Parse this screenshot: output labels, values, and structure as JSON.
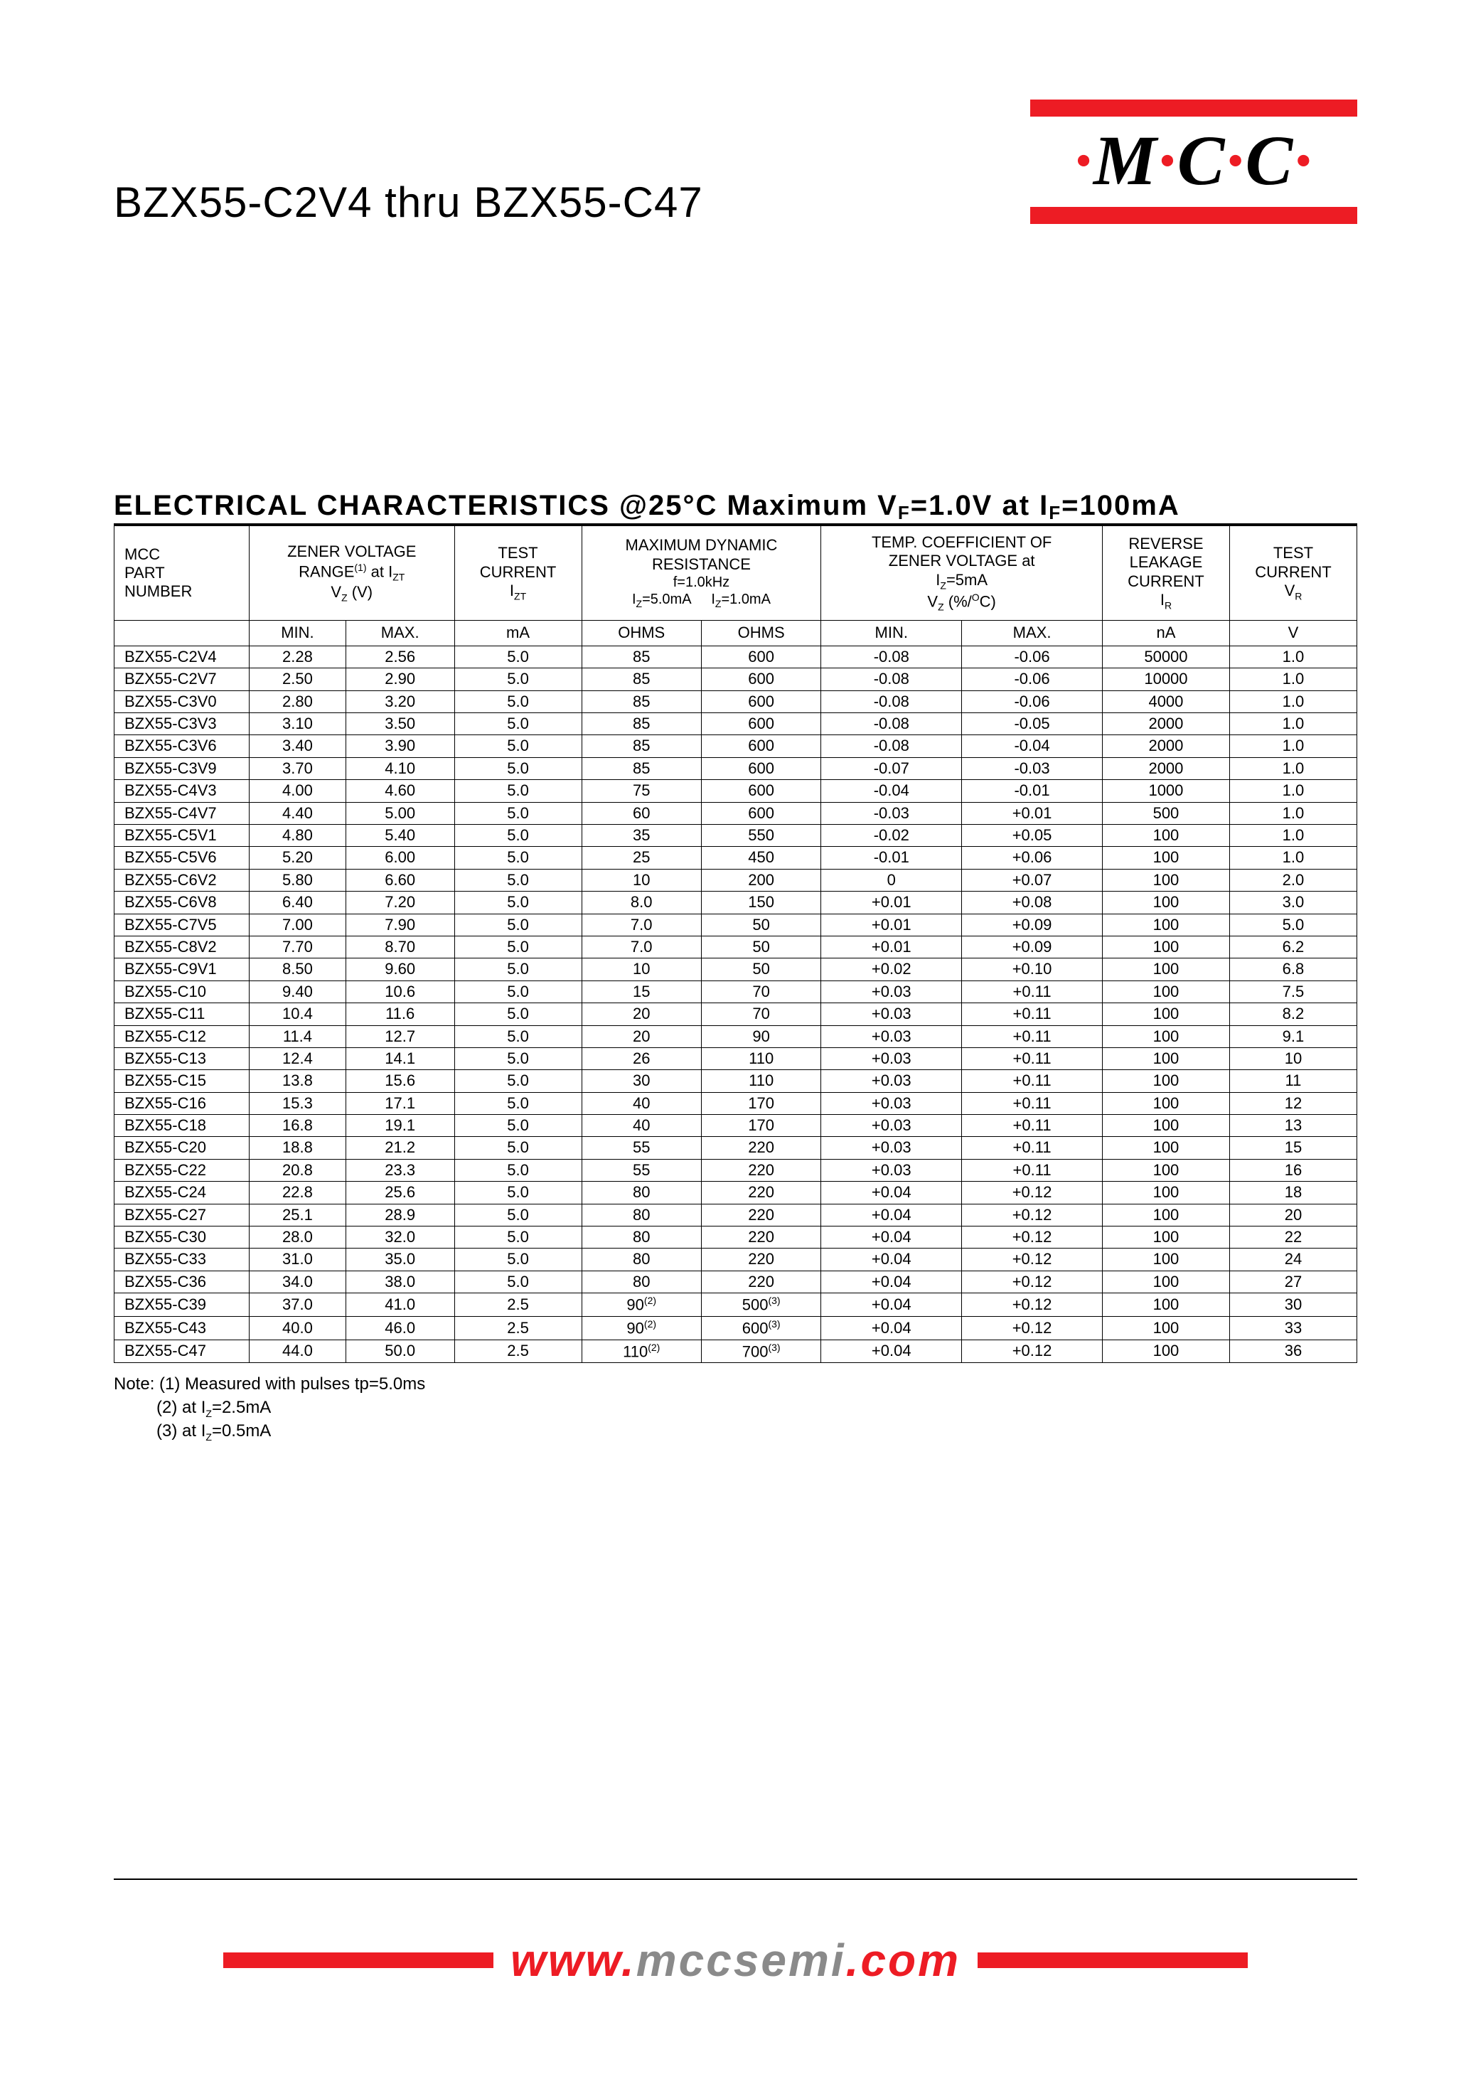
{
  "colors": {
    "accent": "#ed1c24",
    "gray": "#8a8a8a",
    "rule": "#000000",
    "bg": "#ffffff"
  },
  "logo": {
    "text_parts": [
      "·",
      "M",
      "·",
      "C",
      "·",
      "C",
      "·"
    ]
  },
  "product_title": "BZX55-C2V4 thru BZX55-C47",
  "section_title_html": "ELECTRICAL CHARACTERISTICS @25°C Maximum V<sub>F</sub>=1.0V at I<sub>F</sub>=100mA",
  "table": {
    "header_groups": [
      {
        "html": "MCC<br>PART<br>NUMBER",
        "colspan": 1
      },
      {
        "html": "ZENER VOLTAGE<br>RANGE<span class='sup'>(1)</span> at I<span class='sub'>ZT</span><br>V<span class='sub'>Z</span> (V)",
        "colspan": 2
      },
      {
        "html": "TEST<br>CURRENT<br>I<span class='sub'>ZT</span>",
        "colspan": 1
      },
      {
        "html": "MAXIMUM DYNAMIC<br>RESISTANCE<br><span class='subline'>f=1.0kHz</span><span class='subline'>I<span class='sub'>Z</span>=5.0mA&nbsp;&nbsp;&nbsp;&nbsp;&nbsp;I<span class='sub'>Z</span>=1.0mA</span>",
        "colspan": 2
      },
      {
        "html": "TEMP. COEFFICIENT OF<br>ZENER VOLTAGE at<br>I<span class='sub'>Z</span>=5mA<br>V<span class='sub'>Z</span> (%/<span class='sup'>O</span>C)",
        "colspan": 2
      },
      {
        "html": "REVERSE<br>LEAKAGE<br>CURRENT<br>I<span class='sub'>R</span>",
        "colspan": 1
      },
      {
        "html": "TEST<br>CURRENT<br>V<span class='sub'>R</span>",
        "colspan": 1
      }
    ],
    "unit_row": [
      "",
      "MIN.",
      "MAX.",
      "mA",
      "OHMS",
      "OHMS",
      "MIN.",
      "MAX.",
      "nA",
      "V"
    ],
    "rows": [
      [
        "BZX55-C2V4",
        "2.28",
        "2.56",
        "5.0",
        "85",
        "600",
        "-0.08",
        "-0.06",
        "50000",
        "1.0"
      ],
      [
        "BZX55-C2V7",
        "2.50",
        "2.90",
        "5.0",
        "85",
        "600",
        "-0.08",
        "-0.06",
        "10000",
        "1.0"
      ],
      [
        "BZX55-C3V0",
        "2.80",
        "3.20",
        "5.0",
        "85",
        "600",
        "-0.08",
        "-0.06",
        "4000",
        "1.0"
      ],
      [
        "BZX55-C3V3",
        "3.10",
        "3.50",
        "5.0",
        "85",
        "600",
        "-0.08",
        "-0.05",
        "2000",
        "1.0"
      ],
      [
        "BZX55-C3V6",
        "3.40",
        "3.90",
        "5.0",
        "85",
        "600",
        "-0.08",
        "-0.04",
        "2000",
        "1.0"
      ],
      [
        "BZX55-C3V9",
        "3.70",
        "4.10",
        "5.0",
        "85",
        "600",
        "-0.07",
        "-0.03",
        "2000",
        "1.0"
      ],
      [
        "BZX55-C4V3",
        "4.00",
        "4.60",
        "5.0",
        "75",
        "600",
        "-0.04",
        "-0.01",
        "1000",
        "1.0"
      ],
      [
        "BZX55-C4V7",
        "4.40",
        "5.00",
        "5.0",
        "60",
        "600",
        "-0.03",
        "+0.01",
        "500",
        "1.0"
      ],
      [
        "BZX55-C5V1",
        "4.80",
        "5.40",
        "5.0",
        "35",
        "550",
        "-0.02",
        "+0.05",
        "100",
        "1.0"
      ],
      [
        "BZX55-C5V6",
        "5.20",
        "6.00",
        "5.0",
        "25",
        "450",
        "-0.01",
        "+0.06",
        "100",
        "1.0"
      ],
      [
        "BZX55-C6V2",
        "5.80",
        "6.60",
        "5.0",
        "10",
        "200",
        "0",
        "+0.07",
        "100",
        "2.0"
      ],
      [
        "BZX55-C6V8",
        "6.40",
        "7.20",
        "5.0",
        "8.0",
        "150",
        "+0.01",
        "+0.08",
        "100",
        "3.0"
      ],
      [
        "BZX55-C7V5",
        "7.00",
        "7.90",
        "5.0",
        "7.0",
        "50",
        "+0.01",
        "+0.09",
        "100",
        "5.0"
      ],
      [
        "BZX55-C8V2",
        "7.70",
        "8.70",
        "5.0",
        "7.0",
        "50",
        "+0.01",
        "+0.09",
        "100",
        "6.2"
      ],
      [
        "BZX55-C9V1",
        "8.50",
        "9.60",
        "5.0",
        "10",
        "50",
        "+0.02",
        "+0.10",
        "100",
        "6.8"
      ],
      [
        "BZX55-C10",
        "9.40",
        "10.6",
        "5.0",
        "15",
        "70",
        "+0.03",
        "+0.11",
        "100",
        "7.5"
      ],
      [
        "BZX55-C11",
        "10.4",
        "11.6",
        "5.0",
        "20",
        "70",
        "+0.03",
        "+0.11",
        "100",
        "8.2"
      ],
      [
        "BZX55-C12",
        "11.4",
        "12.7",
        "5.0",
        "20",
        "90",
        "+0.03",
        "+0.11",
        "100",
        "9.1"
      ],
      [
        "BZX55-C13",
        "12.4",
        "14.1",
        "5.0",
        "26",
        "110",
        "+0.03",
        "+0.11",
        "100",
        "10"
      ],
      [
        "BZX55-C15",
        "13.8",
        "15.6",
        "5.0",
        "30",
        "110",
        "+0.03",
        "+0.11",
        "100",
        "11"
      ],
      [
        "BZX55-C16",
        "15.3",
        "17.1",
        "5.0",
        "40",
        "170",
        "+0.03",
        "+0.11",
        "100",
        "12"
      ],
      [
        "BZX55-C18",
        "16.8",
        "19.1",
        "5.0",
        "40",
        "170",
        "+0.03",
        "+0.11",
        "100",
        "13"
      ],
      [
        "BZX55-C20",
        "18.8",
        "21.2",
        "5.0",
        "55",
        "220",
        "+0.03",
        "+0.11",
        "100",
        "15"
      ],
      [
        "BZX55-C22",
        "20.8",
        "23.3",
        "5.0",
        "55",
        "220",
        "+0.03",
        "+0.11",
        "100",
        "16"
      ],
      [
        "BZX55-C24",
        "22.8",
        "25.6",
        "5.0",
        "80",
        "220",
        "+0.04",
        "+0.12",
        "100",
        "18"
      ],
      [
        "BZX55-C27",
        "25.1",
        "28.9",
        "5.0",
        "80",
        "220",
        "+0.04",
        "+0.12",
        "100",
        "20"
      ],
      [
        "BZX55-C30",
        "28.0",
        "32.0",
        "5.0",
        "80",
        "220",
        "+0.04",
        "+0.12",
        "100",
        "22"
      ],
      [
        "BZX55-C33",
        "31.0",
        "35.0",
        "5.0",
        "80",
        "220",
        "+0.04",
        "+0.12",
        "100",
        "24"
      ],
      [
        "BZX55-C36",
        "34.0",
        "38.0",
        "5.0",
        "80",
        "220",
        "+0.04",
        "+0.12",
        "100",
        "27"
      ],
      [
        "BZX55-C39",
        "37.0",
        "41.0",
        "2.5",
        "90<span class='sup'>(2)</span>",
        "500<span class='sup'>(3)</span>",
        "+0.04",
        "+0.12",
        "100",
        "30"
      ],
      [
        "BZX55-C43",
        "40.0",
        "46.0",
        "2.5",
        "90<span class='sup'>(2)</span>",
        "600<span class='sup'>(3)</span>",
        "+0.04",
        "+0.12",
        "100",
        "33"
      ],
      [
        "BZX55-C47",
        "44.0",
        "50.0",
        "2.5",
        "110<span class='sup'>(2)</span>",
        "700<span class='sup'>(3)</span>",
        "+0.04",
        "+0.12",
        "100",
        "36"
      ]
    ]
  },
  "notes": [
    "Note: (1) Measured with pulses tp=5.0ms",
    "         (2) at I_Z=2.5mA",
    "         (3) at I_Z=0.5mA"
  ],
  "footer_url": {
    "parts": [
      {
        "text": "www.",
        "cls": "red"
      },
      {
        "text": "mccsemi",
        "cls": "gray"
      },
      {
        "text": ".com",
        "cls": "red"
      }
    ]
  }
}
